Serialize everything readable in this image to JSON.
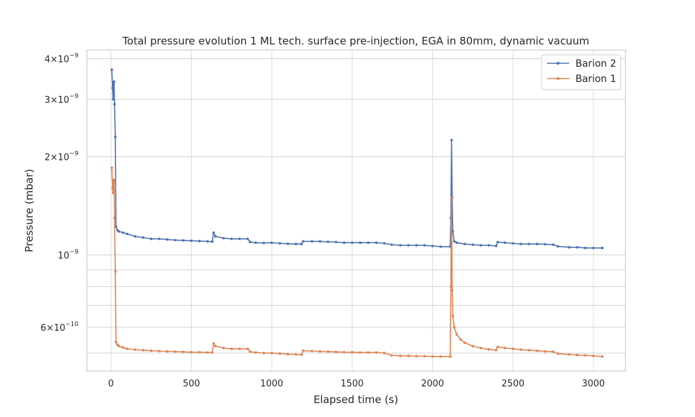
{
  "chart_data": {
    "type": "line",
    "title": "Total pressure evolution 1 ML tech. surface pre-injection, EGA in 80mm, dynamic vacuum",
    "xlabel": "Elapsed time (s)",
    "ylabel": "Pressure (mbar)",
    "xlim": [
      -150,
      3200
    ],
    "ylim": [
      4.4e-10,
      4.25e-09
    ],
    "yscale": "log",
    "grid": true,
    "legend_position": "top-right",
    "x_ticks": [
      {
        "value": 0,
        "label": "0"
      },
      {
        "value": 500,
        "label": "500"
      },
      {
        "value": 1000,
        "label": "1000"
      },
      {
        "value": 1500,
        "label": "1500"
      },
      {
        "value": 2000,
        "label": "2000"
      },
      {
        "value": 2500,
        "label": "2500"
      },
      {
        "value": 3000,
        "label": "3000"
      }
    ],
    "y_major_ticks": [
      {
        "value": 1e-09,
        "label": "10",
        "exp": "−9"
      }
    ],
    "y_minor_ticks": [
      {
        "value": 6e-10,
        "mant": "6×10",
        "exp": "−10"
      },
      {
        "value": 2e-09,
        "mant": "2×10",
        "exp": "−9"
      },
      {
        "value": 3e-09,
        "mant": "3×10",
        "exp": "−9"
      },
      {
        "value": 4e-09,
        "mant": "4×10",
        "exp": "−9"
      }
    ],
    "y_minor_grid": [
      5e-10,
      7e-10,
      8e-10,
      9e-10,
      2e-09,
      3e-09,
      4e-09,
      6e-10
    ],
    "series": [
      {
        "name": "Barion 2",
        "color": "#4c72b0",
        "points": [
          [
            5,
            3.7e-09
          ],
          [
            10,
            3.25e-09
          ],
          [
            13,
            3e-09
          ],
          [
            16,
            3.35e-09
          ],
          [
            19,
            3.4e-09
          ],
          [
            22,
            2.9e-09
          ],
          [
            27,
            2.3e-09
          ],
          [
            31,
            1.22e-09
          ],
          [
            40,
            1.19e-09
          ],
          [
            50,
            1.18e-09
          ],
          [
            75,
            1.17e-09
          ],
          [
            100,
            1.16e-09
          ],
          [
            150,
            1.14e-09
          ],
          [
            200,
            1.13e-09
          ],
          [
            250,
            1.12e-09
          ],
          [
            300,
            1.12e-09
          ],
          [
            350,
            1.115e-09
          ],
          [
            400,
            1.11e-09
          ],
          [
            450,
            1.108e-09
          ],
          [
            500,
            1.105e-09
          ],
          [
            550,
            1.103e-09
          ],
          [
            600,
            1.1e-09
          ],
          [
            630,
            1.098e-09
          ],
          [
            638,
            1.17e-09
          ],
          [
            650,
            1.14e-09
          ],
          [
            700,
            1.125e-09
          ],
          [
            750,
            1.12e-09
          ],
          [
            800,
            1.12e-09
          ],
          [
            850,
            1.12e-09
          ],
          [
            865,
            1.095e-09
          ],
          [
            900,
            1.09e-09
          ],
          [
            950,
            1.088e-09
          ],
          [
            1000,
            1.09e-09
          ],
          [
            1050,
            1.085e-09
          ],
          [
            1100,
            1.082e-09
          ],
          [
            1150,
            1.08e-09
          ],
          [
            1185,
            1.08e-09
          ],
          [
            1195,
            1.1e-09
          ],
          [
            1250,
            1.1e-09
          ],
          [
            1300,
            1.1e-09
          ],
          [
            1350,
            1.097e-09
          ],
          [
            1400,
            1.095e-09
          ],
          [
            1450,
            1.09e-09
          ],
          [
            1500,
            1.09e-09
          ],
          [
            1550,
            1.09e-09
          ],
          [
            1600,
            1.09e-09
          ],
          [
            1650,
            1.09e-09
          ],
          [
            1700,
            1.085e-09
          ],
          [
            1745,
            1.075e-09
          ],
          [
            1800,
            1.07e-09
          ],
          [
            1850,
            1.07e-09
          ],
          [
            1900,
            1.07e-09
          ],
          [
            1950,
            1.07e-09
          ],
          [
            2000,
            1.065e-09
          ],
          [
            2050,
            1.06e-09
          ],
          [
            2110,
            1.06e-09
          ],
          [
            2114,
            1.3e-09
          ],
          [
            2118,
            2.25e-09
          ],
          [
            2122,
            1.5e-09
          ],
          [
            2126,
            1.18e-09
          ],
          [
            2135,
            1.1e-09
          ],
          [
            2150,
            1.09e-09
          ],
          [
            2200,
            1.08e-09
          ],
          [
            2250,
            1.075e-09
          ],
          [
            2300,
            1.07e-09
          ],
          [
            2350,
            1.07e-09
          ],
          [
            2395,
            1.065e-09
          ],
          [
            2405,
            1.095e-09
          ],
          [
            2450,
            1.09e-09
          ],
          [
            2500,
            1.085e-09
          ],
          [
            2550,
            1.08e-09
          ],
          [
            2600,
            1.08e-09
          ],
          [
            2650,
            1.08e-09
          ],
          [
            2700,
            1.078e-09
          ],
          [
            2750,
            1.075e-09
          ],
          [
            2780,
            1.062e-09
          ],
          [
            2850,
            1.055e-09
          ],
          [
            2900,
            1.055e-09
          ],
          [
            2950,
            1.05e-09
          ],
          [
            3000,
            1.05e-09
          ],
          [
            3055,
            1.05e-09
          ]
        ]
      },
      {
        "name": "Barion 1",
        "color": "#dd8452",
        "points": [
          [
            5,
            1.85e-09
          ],
          [
            10,
            1.6e-09
          ],
          [
            13,
            1.55e-09
          ],
          [
            16,
            1.7e-09
          ],
          [
            19,
            1.68e-09
          ],
          [
            22,
            1.3e-09
          ],
          [
            27,
            8.9e-10
          ],
          [
            31,
            5.4e-10
          ],
          [
            40,
            5.3e-10
          ],
          [
            50,
            5.25e-10
          ],
          [
            75,
            5.2e-10
          ],
          [
            100,
            5.15e-10
          ],
          [
            150,
            5.12e-10
          ],
          [
            200,
            5.1e-10
          ],
          [
            250,
            5.08e-10
          ],
          [
            300,
            5.07e-10
          ],
          [
            350,
            5.06e-10
          ],
          [
            400,
            5.05e-10
          ],
          [
            450,
            5.04e-10
          ],
          [
            500,
            5.03e-10
          ],
          [
            550,
            5.03e-10
          ],
          [
            600,
            5.02e-10
          ],
          [
            630,
            5.02e-10
          ],
          [
            638,
            5.35e-10
          ],
          [
            650,
            5.25e-10
          ],
          [
            700,
            5.18e-10
          ],
          [
            750,
            5.15e-10
          ],
          [
            800,
            5.15e-10
          ],
          [
            850,
            5.15e-10
          ],
          [
            865,
            5.05e-10
          ],
          [
            900,
            5.02e-10
          ],
          [
            950,
            5e-10
          ],
          [
            1000,
            5e-10
          ],
          [
            1050,
            4.98e-10
          ],
          [
            1100,
            4.96e-10
          ],
          [
            1150,
            4.95e-10
          ],
          [
            1185,
            4.94e-10
          ],
          [
            1195,
            5.08e-10
          ],
          [
            1250,
            5.07e-10
          ],
          [
            1300,
            5.06e-10
          ],
          [
            1350,
            5.05e-10
          ],
          [
            1400,
            5.04e-10
          ],
          [
            1450,
            5.03e-10
          ],
          [
            1500,
            5.03e-10
          ],
          [
            1550,
            5.02e-10
          ],
          [
            1600,
            5.02e-10
          ],
          [
            1650,
            5.02e-10
          ],
          [
            1700,
            5e-10
          ],
          [
            1745,
            4.92e-10
          ],
          [
            1800,
            4.9e-10
          ],
          [
            1850,
            4.9e-10
          ],
          [
            1900,
            4.89e-10
          ],
          [
            1950,
            4.89e-10
          ],
          [
            2000,
            4.88e-10
          ],
          [
            2050,
            4.88e-10
          ],
          [
            2110,
            4.88e-10
          ],
          [
            2114,
            8e-10
          ],
          [
            2118,
            1.5e-09
          ],
          [
            2122,
            7.8e-10
          ],
          [
            2126,
            6.5e-10
          ],
          [
            2135,
            6e-10
          ],
          [
            2150,
            5.7e-10
          ],
          [
            2175,
            5.5e-10
          ],
          [
            2200,
            5.38e-10
          ],
          [
            2250,
            5.25e-10
          ],
          [
            2300,
            5.18e-10
          ],
          [
            2350,
            5.13e-10
          ],
          [
            2395,
            5.1e-10
          ],
          [
            2405,
            5.22e-10
          ],
          [
            2450,
            5.18e-10
          ],
          [
            2500,
            5.15e-10
          ],
          [
            2550,
            5.12e-10
          ],
          [
            2600,
            5.1e-10
          ],
          [
            2650,
            5.08e-10
          ],
          [
            2700,
            5.06e-10
          ],
          [
            2750,
            5.05e-10
          ],
          [
            2780,
            4.98e-10
          ],
          [
            2850,
            4.95e-10
          ],
          [
            2900,
            4.93e-10
          ],
          [
            2950,
            4.92e-10
          ],
          [
            3000,
            4.9e-10
          ],
          [
            3055,
            4.88e-10
          ]
        ]
      }
    ]
  }
}
